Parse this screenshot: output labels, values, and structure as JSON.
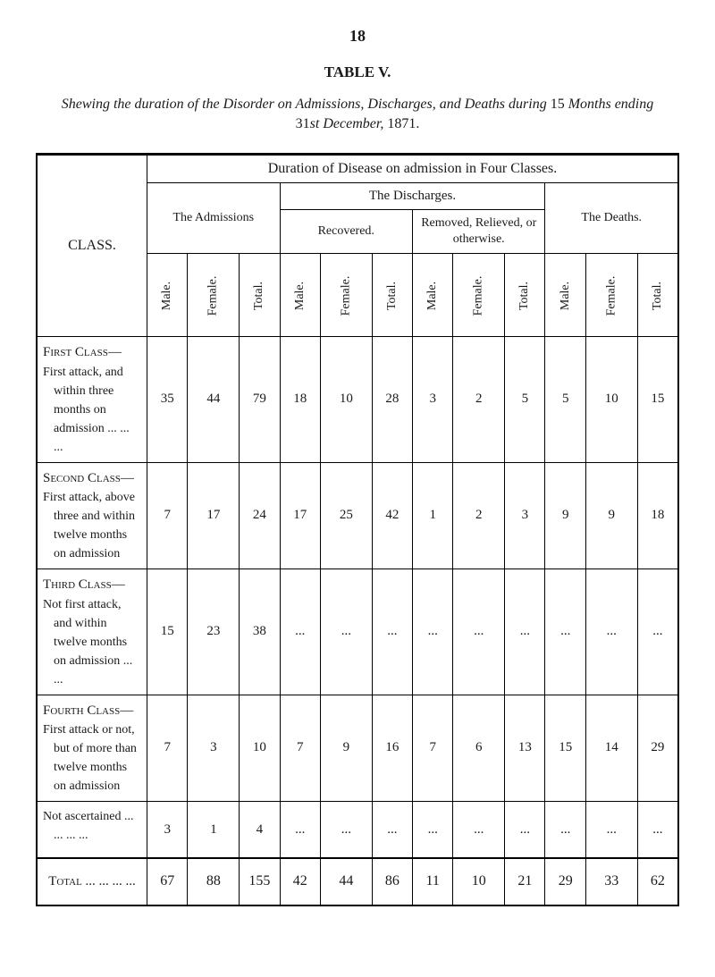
{
  "page_number": "18",
  "table_label": "TABLE V.",
  "caption_parts": {
    "italic1": "Shewing the duration of the Disorder on Admissions, Discharges, and Deaths during",
    "normal1": " 15 ",
    "italic2": "Months ending",
    "normal2": " 31",
    "italic3": "st December,",
    "normal3": " 1871."
  },
  "headers": {
    "class": "CLASS.",
    "duration": "Duration of Disease on admission in Four Classes.",
    "admissions": "The Admissions",
    "discharges": "The Discharges.",
    "recovered": "Recovered.",
    "removed": "Removed, Relieved, or otherwise.",
    "deaths": "The Deaths.",
    "male": "Male.",
    "female": "Female.",
    "total": "Total."
  },
  "rows": [
    {
      "class_label_sc": "First Class—",
      "class_label_body": "First attack, and within three months on admission ... ... ...",
      "values": [
        "35",
        "44",
        "79",
        "18",
        "10",
        "28",
        "3",
        "2",
        "5",
        "5",
        "10",
        "15"
      ]
    },
    {
      "class_label_sc": "Second Class—",
      "class_label_body": "First attack, above three and within twelve months on admission",
      "values": [
        "7",
        "17",
        "24",
        "17",
        "25",
        "42",
        "1",
        "2",
        "3",
        "9",
        "9",
        "18"
      ]
    },
    {
      "class_label_sc": "Third Class—",
      "class_label_body": "Not first attack, and within twelve months on admission ... ...",
      "values": [
        "15",
        "23",
        "38",
        "...",
        "...",
        "...",
        "...",
        "...",
        "...",
        "...",
        "...",
        "..."
      ]
    },
    {
      "class_label_sc": "Fourth Class—",
      "class_label_body": "First attack or not, but of more than twelve months on admission",
      "values": [
        "7",
        "3",
        "10",
        "7",
        "9",
        "16",
        "7",
        "6",
        "13",
        "15",
        "14",
        "29"
      ]
    },
    {
      "class_label_sc": "",
      "class_label_body": "Not ascertained ... ... ... ...",
      "values": [
        "3",
        "1",
        "4",
        "...",
        "...",
        "...",
        "...",
        "...",
        "...",
        "...",
        "...",
        "..."
      ]
    }
  ],
  "total": {
    "label": "Total ... ... ... ...",
    "values": [
      "67",
      "88",
      "155",
      "42",
      "44",
      "86",
      "11",
      "10",
      "21",
      "29",
      "33",
      "62"
    ]
  }
}
